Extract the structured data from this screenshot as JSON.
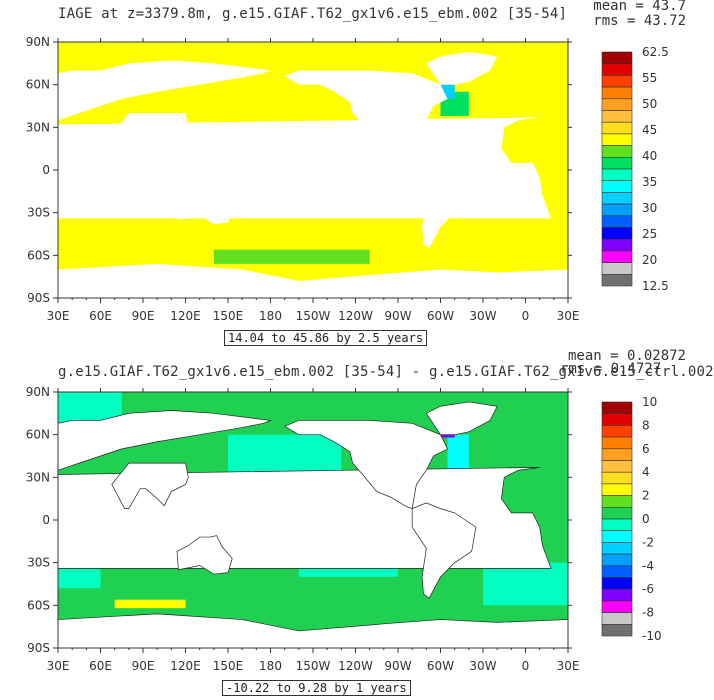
{
  "chart_data": [
    {
      "type": "heatmap",
      "title": "IAGE at z=3379.8m, g.e15.GIAF.T62_gx1v6.e15_ebm.002 [35-54]",
      "stats": {
        "mean": "mean = 43.7",
        "rms": "rms = 43.72"
      },
      "contour_info": "14.04 to 45.86 by 2.5 years",
      "x_ticks": [
        "30E",
        "60E",
        "90E",
        "120E",
        "150E",
        "180",
        "150W",
        "120W",
        "90W",
        "60W",
        "30W",
        "0",
        "30E"
      ],
      "y_ticks": [
        "90N",
        "60N",
        "30N",
        "0",
        "30S",
        "60S",
        "90S"
      ],
      "xlim": [
        30,
        390
      ],
      "ylim": [
        -90,
        90
      ],
      "colorbar": {
        "labels": [
          "62.5",
          "55",
          "50",
          "45",
          "40",
          "35",
          "30",
          "25",
          "20",
          "12.5"
        ],
        "colors": [
          "#a00000",
          "#e00000",
          "#ff4000",
          "#ff8000",
          "#ffa020",
          "#ffc040",
          "#ffe020",
          "#ffff00",
          "#60e020",
          "#00e060",
          "#00ffc0",
          "#00ffff",
          "#00d0ff",
          "#00a0ff",
          "#0060ff",
          "#0000ff",
          "#8000ff",
          "#ff00ff",
          "#c8c8c8",
          "#707070"
        ]
      },
      "dominant_color": "#ffff00"
    },
    {
      "type": "heatmap",
      "title": "g.e15.GIAF.T62_gx1v6.e15_ebm.002 [35-54] - g.e15.GIAF.T62_gx1v6.e15_ctrl.002",
      "stats": {
        "mean": "mean = 0.02872",
        "rms": "rms = 0.4727"
      },
      "contour_info": "-10.22 to 9.28 by 1 years",
      "x_ticks": [
        "30E",
        "60E",
        "90E",
        "120E",
        "150E",
        "180",
        "150W",
        "120W",
        "90W",
        "60W",
        "30W",
        "0",
        "30E"
      ],
      "y_ticks": [
        "90N",
        "60N",
        "30N",
        "0",
        "30S",
        "60S",
        "90S"
      ],
      "xlim": [
        30,
        390
      ],
      "ylim": [
        -90,
        90
      ],
      "colorbar": {
        "labels": [
          "10",
          "8",
          "6",
          "4",
          "2",
          "0",
          "-2",
          "-4",
          "-6",
          "-8",
          "-10"
        ],
        "colors": [
          "#a00000",
          "#e00000",
          "#ff4000",
          "#ff8000",
          "#ffa020",
          "#ffc040",
          "#ffe020",
          "#ffff00",
          "#60e020",
          "#20d050",
          "#00ffc0",
          "#00ffff",
          "#00d0ff",
          "#00a0ff",
          "#0060ff",
          "#0000ff",
          "#8000ff",
          "#ff00ff",
          "#c8c8c8",
          "#707070"
        ]
      },
      "dominant_color": "#20d050"
    }
  ]
}
